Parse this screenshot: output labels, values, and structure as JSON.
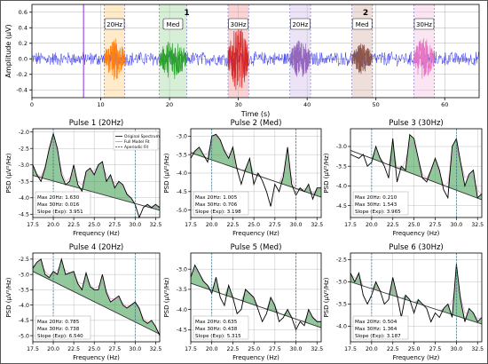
{
  "colors": {
    "signal": "#3a3af0",
    "fit_fill": "#3a9a4a",
    "full_fit": "#e377c2",
    "aperiodic": "#333333",
    "grid": "#b0b0b0",
    "segments": [
      "#ff7f0e",
      "#2ca02c",
      "#d62728",
      "#9467bd",
      "#8c564b",
      "#e377c2"
    ],
    "highlight": [
      "#ffd28a",
      "#a6dca6",
      "#f5a0a0",
      "#d6c2ea",
      "#d9b8ad",
      "#f6c6e2"
    ]
  },
  "chart_data": [
    {
      "type": "line",
      "xlabel": "Time (s)",
      "ylabel": "Amplitude (µV)",
      "xlim": [
        0,
        65
      ],
      "ylim": [
        -0.5,
        0.7
      ],
      "x_ticks": [
        0,
        10,
        20,
        30,
        40,
        50,
        60
      ],
      "y_ticks": [
        0.6,
        0.4,
        0.2,
        0.0,
        -0.2,
        -0.4
      ],
      "grid": true,
      "series": [
        {
          "name": "",
          "x": [
            0,
            65
          ],
          "values_range": [
            -0.08,
            0.08
          ],
          "color_key": "signal"
        }
      ],
      "segments": [
        {
          "label": "20Hz",
          "start": 10.5,
          "end": 13.5,
          "amplitude": 0.28
        },
        {
          "label": "Med",
          "start": 18.5,
          "end": 22.5,
          "amplitude": 0.27
        },
        {
          "label": "30Hz",
          "start": 28.5,
          "end": 31.5,
          "amplitude": 0.42
        },
        {
          "label": "20Hz",
          "start": 37.5,
          "end": 40.5,
          "amplitude": 0.26
        },
        {
          "label": "Med",
          "start": 46.5,
          "end": 49.5,
          "amplitude": 0.2
        },
        {
          "label": "30Hz",
          "start": 55.5,
          "end": 58.5,
          "amplitude": 0.28
        }
      ],
      "block_labels": [
        {
          "label": "1",
          "x": 22.5
        },
        {
          "label": "2",
          "x": 48.5
        }
      ],
      "marker_line": 7.5
    },
    {
      "type": "area",
      "title": "Pulse 1 (20Hz)",
      "xlabel": "Frequency (Hz)",
      "ylabel": "PSD (µV²/Hz)",
      "xlim": [
        17.5,
        33
      ],
      "ylim": [
        -4.6,
        -1.9
      ],
      "x_ticks": [
        17.5,
        20.0,
        22.5,
        25.0,
        27.5,
        30.0,
        32.5
      ],
      "y_ticks": [
        -2.0,
        -2.5,
        -3.0,
        -3.5,
        -4.0,
        -4.5
      ],
      "vlines": [
        20,
        30
      ],
      "x": [
        17.5,
        18,
        18.5,
        19,
        19.5,
        20,
        20.5,
        21,
        21.5,
        22,
        22.5,
        23,
        23.5,
        24,
        24.5,
        25,
        25.5,
        26,
        26.5,
        27,
        27.5,
        28,
        28.5,
        29,
        29.5,
        30,
        30.5,
        31,
        31.5,
        32,
        32.5,
        33
      ],
      "values": [
        -3.0,
        -3.3,
        -3.5,
        -3.1,
        -2.5,
        -2.05,
        -2.5,
        -3.3,
        -3.6,
        -3.5,
        -3.0,
        -3.6,
        -3.8,
        -3.2,
        -3.1,
        -3.3,
        -3.0,
        -2.9,
        -3.5,
        -3.3,
        -3.7,
        -3.5,
        -3.6,
        -3.9,
        -4.0,
        -4.2,
        -4.6,
        -4.3,
        -4.2,
        -4.3,
        -4.2,
        -4.3
      ],
      "aperiodic": [
        -3.32,
        -4.38
      ],
      "legend": [
        "Original Spectrum",
        "Full Model Fit",
        "Aperiodic Fit"
      ],
      "stats": [
        "Max 20Hz: 1.630",
        "Max 30Hz: 0.016",
        "Slope (Exp): 3.951"
      ]
    },
    {
      "type": "area",
      "title": "Pulse 2 (Med)",
      "xlabel": "Frequency (Hz)",
      "ylabel": "PSD (µV²/Hz)",
      "xlim": [
        17.5,
        33
      ],
      "ylim": [
        -5.2,
        -2.8
      ],
      "x_ticks": [
        17.5,
        20.0,
        22.5,
        25.0,
        27.5,
        30.0,
        32.5
      ],
      "y_ticks": [
        -3.0,
        -3.5,
        -4.0,
        -4.5,
        -5.0
      ],
      "vlines": [
        20,
        30
      ],
      "x": [
        17.5,
        18,
        18.5,
        19,
        19.5,
        20,
        20.5,
        21,
        21.5,
        22,
        22.5,
        23,
        23.5,
        24,
        24.5,
        25,
        25.5,
        26,
        26.5,
        27,
        27.5,
        28,
        28.5,
        29,
        29.5,
        30,
        30.5,
        31,
        31.5,
        32,
        32.5,
        33
      ],
      "values": [
        -3.6,
        -3.4,
        -3.3,
        -3.5,
        -3.7,
        -3.0,
        -2.95,
        -3.1,
        -3.4,
        -3.6,
        -3.3,
        -3.9,
        -4.3,
        -3.9,
        -3.6,
        -4.3,
        -4.0,
        -4.2,
        -4.5,
        -4.9,
        -4.3,
        -4.5,
        -4.1,
        -3.3,
        -4.3,
        -4.6,
        -4.4,
        -4.5,
        -4.3,
        -4.7,
        -4.4,
        -4.4
      ],
      "aperiodic": [
        -3.45,
        -4.65
      ],
      "stats": [
        "Max 20Hz: 1.005",
        "Max 30Hz: 0.706",
        "Slope (Exp): 3.198"
      ]
    },
    {
      "type": "area",
      "title": "Pulse 3 (30Hz)",
      "xlabel": "Frequency (Hz)",
      "ylabel": "PSD (µV²/Hz)",
      "xlim": [
        17.5,
        33
      ],
      "ylim": [
        -4.8,
        -2.55
      ],
      "x_ticks": [
        17.5,
        20.0,
        22.5,
        25.0,
        27.5,
        30.0,
        32.5
      ],
      "y_ticks": [
        -3.0,
        -3.5,
        -4.0,
        -4.5
      ],
      "vlines": [
        20,
        30
      ],
      "x": [
        17.5,
        18,
        18.5,
        19,
        19.5,
        20,
        20.5,
        21,
        21.5,
        22,
        22.5,
        23,
        23.5,
        24,
        24.5,
        25,
        25.5,
        26,
        26.5,
        27,
        27.5,
        28,
        28.5,
        29,
        29.5,
        30,
        30.5,
        31,
        31.5,
        32,
        32.5,
        33
      ],
      "values": [
        -3.2,
        -3.25,
        -3.3,
        -3.2,
        -3.5,
        -3.4,
        -3.0,
        -3.3,
        -3.5,
        -3.8,
        -2.8,
        -3.9,
        -3.5,
        -3.6,
        -2.7,
        -2.8,
        -3.3,
        -3.8,
        -3.9,
        -3.6,
        -3.3,
        -3.6,
        -4.1,
        -4.3,
        -3.0,
        -2.8,
        -3.4,
        -4.0,
        -3.7,
        -3.6,
        -4.3,
        -4.2
      ],
      "aperiodic": [
        -3.1,
        -4.35
      ],
      "stats": [
        "Max 20Hz: 0.210",
        "Max 30Hz: 1.543",
        "Slope (Exp): 3.965"
      ]
    },
    {
      "type": "area",
      "title": "Pulse 4 (20Hz)",
      "xlabel": "Frequency (Hz)",
      "ylabel": "PSD (µV²/Hz)",
      "xlim": [
        17.5,
        33
      ],
      "ylim": [
        -5.2,
        -2.3
      ],
      "x_ticks": [
        17.5,
        20.0,
        22.5,
        25.0,
        27.5,
        30.0,
        32.5
      ],
      "y_ticks": [
        -2.5,
        -3.0,
        -3.5,
        -4.0,
        -4.5,
        -5.0
      ],
      "vlines": [
        20,
        30
      ],
      "x": [
        17.5,
        18,
        18.5,
        19,
        19.5,
        20,
        20.5,
        21,
        21.5,
        22,
        22.5,
        23,
        23.5,
        24,
        24.5,
        25,
        25.5,
        26,
        26.5,
        27,
        27.5,
        28,
        28.5,
        29,
        29.5,
        30,
        30.5,
        31,
        31.5,
        32,
        32.5,
        33
      ],
      "values": [
        -2.8,
        -2.6,
        -2.5,
        -3.0,
        -3.1,
        -2.9,
        -3.0,
        -2.5,
        -3.0,
        -2.95,
        -2.9,
        -3.3,
        -3.5,
        -2.95,
        -3.4,
        -3.5,
        -3.5,
        -3.0,
        -3.6,
        -3.9,
        -3.8,
        -3.7,
        -4.0,
        -4.1,
        -4.0,
        -3.9,
        -4.1,
        -4.5,
        -4.6,
        -4.5,
        -4.7,
        -5.0
      ],
      "aperiodic": [
        -2.9,
        -4.95
      ],
      "stats": [
        "Max 20Hz: 0.785",
        "Max 30Hz: 0.738",
        "Slope (Exp): 6.540"
      ]
    },
    {
      "type": "area",
      "title": "Pulse 5 (Med)",
      "xlabel": "Frequency (Hz)",
      "ylabel": "PSD (µV²/Hz)",
      "xlim": [
        17.5,
        33
      ],
      "ylim": [
        -4.8,
        -2.6
      ],
      "x_ticks": [
        17.5,
        20.0,
        22.5,
        25.0,
        27.5,
        30.0,
        32.5
      ],
      "y_ticks": [
        -3.0,
        -3.5,
        -4.0,
        -4.5
      ],
      "vlines": [
        20,
        30
      ],
      "x": [
        17.5,
        18,
        18.5,
        19,
        19.5,
        20,
        20.5,
        21,
        21.5,
        22,
        22.5,
        23,
        23.5,
        24,
        24.5,
        25,
        25.5,
        26,
        26.5,
        27,
        27.5,
        28,
        28.5,
        29,
        29.5,
        30,
        30.5,
        31,
        31.5,
        32,
        32.5,
        33
      ],
      "values": [
        -3.2,
        -2.9,
        -3.1,
        -3.3,
        -3.4,
        -3.6,
        -3.2,
        -3.7,
        -3.9,
        -3.4,
        -3.7,
        -4.1,
        -4.0,
        -3.5,
        -3.6,
        -3.7,
        -4.0,
        -4.3,
        -4.1,
        -3.7,
        -3.9,
        -4.3,
        -4.2,
        -4.0,
        -4.2,
        -4.5,
        -4.3,
        -4.4,
        -4.0,
        -4.2,
        -4.3,
        -4.3
      ],
      "aperiodic": [
        -3.35,
        -4.45
      ],
      "stats": [
        "Max 20Hz: 0.635",
        "Max 30Hz: 0.438",
        "Slope (Exp): 5.315"
      ]
    },
    {
      "type": "area",
      "title": "Pulse 6 (30Hz)",
      "xlabel": "Frequency (Hz)",
      "ylabel": "PSD (µV²/Hz)",
      "xlim": [
        17.5,
        33
      ],
      "ylim": [
        -4.35,
        -2.35
      ],
      "x_ticks": [
        17.5,
        20.0,
        22.5,
        25.0,
        27.5,
        30.0,
        32.5
      ],
      "y_ticks": [
        -2.5,
        -3.0,
        -3.5,
        -4.0
      ],
      "vlines": [
        20,
        30
      ],
      "x": [
        17.5,
        18,
        18.5,
        19,
        19.5,
        20,
        20.5,
        21,
        21.5,
        22,
        22.5,
        23,
        23.5,
        24,
        24.5,
        25,
        25.5,
        26,
        26.5,
        27,
        27.5,
        28,
        28.5,
        29,
        29.5,
        30,
        30.5,
        31,
        31.5,
        32,
        32.5,
        33
      ],
      "values": [
        -2.8,
        -3.0,
        -2.8,
        -3.3,
        -3.5,
        -3.3,
        -3.0,
        -3.2,
        -3.5,
        -3.4,
        -2.9,
        -3.3,
        -3.8,
        -3.3,
        -3.4,
        -3.7,
        -3.4,
        -3.5,
        -3.6,
        -3.9,
        -3.7,
        -3.8,
        -3.6,
        -3.5,
        -3.8,
        -2.6,
        -3.4,
        -3.9,
        -3.6,
        -3.7,
        -3.9,
        -3.8
      ],
      "aperiodic": [
        -3.0,
        -3.95
      ],
      "stats": [
        "Max 20Hz: 0.504",
        "Max 30Hz: 1.364",
        "Slope (Exp): 3.187"
      ]
    }
  ]
}
